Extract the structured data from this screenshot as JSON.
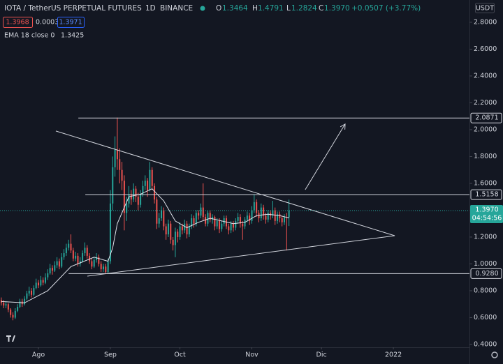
{
  "header": {
    "symbol": "IOTA / TetherUS PERPETUAL FUTURES",
    "interval": "1D",
    "exchange": "BINANCE",
    "open_label": "O",
    "open": "1.3464",
    "high_label": "H",
    "high": "1.4791",
    "low_label": "L",
    "low": "1.2824",
    "close_label": "C",
    "close": "1.3970",
    "change": "+0.0507 (+3.77%)",
    "sell": "1.3968",
    "spread": "0.0003",
    "buy": "1.3971",
    "ema_label": "EMA 18 close 0",
    "ema_value": "1.3425",
    "currency": "USDT"
  },
  "chart_data": {
    "type": "candlestick",
    "up_color": "#26a69a",
    "down_color": "#ef5350",
    "grid": false,
    "ylim": [
      0.379,
      2.966
    ],
    "xlim": [
      -0.57,
      201.8
    ],
    "yticks": [
      {
        "value": 0.4,
        "label": "0.4000"
      },
      {
        "value": 0.6,
        "label": "0.6000"
      },
      {
        "value": 0.8,
        "label": "0.8000"
      },
      {
        "value": 1.0,
        "label": "1.0000"
      },
      {
        "value": 1.2,
        "label": "1.2000"
      },
      {
        "value": 1.4,
        "label": "1.4000"
      },
      {
        "value": 1.6,
        "label": "1.6000"
      },
      {
        "value": 1.8,
        "label": "1.8000"
      },
      {
        "value": 2.0,
        "label": "2.0000"
      },
      {
        "value": 2.2,
        "label": "2.2000"
      },
      {
        "value": 2.4,
        "label": "2.4000"
      },
      {
        "value": 2.6,
        "label": "2.6000"
      },
      {
        "value": 2.8,
        "label": "2.8000"
      }
    ],
    "xticks": [
      {
        "value": 16,
        "label": "Ago"
      },
      {
        "value": 47,
        "label": "Sep"
      },
      {
        "value": 77,
        "label": "Oct"
      },
      {
        "value": 108,
        "label": "Nov"
      },
      {
        "value": 138,
        "label": "Dic"
      },
      {
        "value": 169,
        "label": "2022"
      }
    ],
    "ohlc": [
      [
        0.73,
        0.75,
        0.69,
        0.71
      ],
      [
        0.71,
        0.73,
        0.67,
        0.69
      ],
      [
        0.69,
        0.72,
        0.67,
        0.7
      ],
      [
        0.7,
        0.71,
        0.64,
        0.66
      ],
      [
        0.66,
        0.67,
        0.6,
        0.62
      ],
      [
        0.62,
        0.64,
        0.58,
        0.6
      ],
      [
        0.6,
        0.67,
        0.59,
        0.65
      ],
      [
        0.65,
        0.7,
        0.64,
        0.68
      ],
      [
        0.68,
        0.74,
        0.67,
        0.72
      ],
      [
        0.72,
        0.74,
        0.68,
        0.7
      ],
      [
        0.7,
        0.76,
        0.69,
        0.74
      ],
      [
        0.74,
        0.8,
        0.73,
        0.78
      ],
      [
        0.78,
        0.83,
        0.76,
        0.8
      ],
      [
        0.8,
        0.82,
        0.75,
        0.77
      ],
      [
        0.77,
        0.84,
        0.76,
        0.82
      ],
      [
        0.82,
        0.89,
        0.81,
        0.86
      ],
      [
        0.86,
        0.88,
        0.82,
        0.84
      ],
      [
        0.84,
        0.91,
        0.83,
        0.88
      ],
      [
        0.88,
        0.9,
        0.84,
        0.86
      ],
      [
        0.86,
        0.93,
        0.85,
        0.9
      ],
      [
        0.9,
        0.96,
        0.88,
        0.93
      ],
      [
        0.93,
        1.0,
        0.92,
        0.97
      ],
      [
        0.97,
        0.99,
        0.92,
        0.95
      ],
      [
        0.95,
        1.02,
        0.94,
        0.99
      ],
      [
        0.99,
        1.05,
        0.97,
        1.02
      ],
      [
        1.02,
        1.04,
        0.96,
        0.98
      ],
      [
        0.98,
        1.08,
        0.97,
        1.05
      ],
      [
        1.05,
        1.11,
        1.03,
        1.08
      ],
      [
        1.08,
        1.15,
        1.06,
        1.12
      ],
      [
        1.12,
        1.18,
        1.1,
        1.15
      ],
      [
        1.15,
        1.22,
        1.08,
        1.1
      ],
      [
        1.1,
        1.12,
        1.02,
        1.04
      ],
      [
        1.04,
        1.09,
        1.02,
        1.06
      ],
      [
        1.06,
        1.08,
        0.98,
        1.0
      ],
      [
        1.0,
        1.05,
        0.98,
        1.02
      ],
      [
        1.02,
        1.1,
        1.01,
        1.08
      ],
      [
        1.08,
        1.16,
        1.06,
        1.12
      ],
      [
        1.12,
        1.14,
        1.04,
        1.06
      ],
      [
        1.06,
        1.08,
        1.0,
        1.02
      ],
      [
        1.02,
        1.04,
        0.96,
        0.98
      ],
      [
        0.98,
        1.05,
        0.97,
        1.03
      ],
      [
        1.03,
        1.08,
        1.01,
        1.05
      ],
      [
        1.05,
        1.07,
        0.98,
        1.0
      ],
      [
        1.0,
        1.02,
        0.94,
        0.96
      ],
      [
        0.96,
        1.0,
        0.94,
        0.98
      ],
      [
        0.98,
        1.0,
        0.93,
        0.94
      ],
      [
        0.94,
        1.04,
        0.93,
        1.02
      ],
      [
        1.02,
        1.55,
        1.0,
        1.45
      ],
      [
        1.45,
        1.8,
        1.4,
        1.72
      ],
      [
        1.72,
        1.95,
        1.65,
        1.85
      ],
      [
        1.85,
        2.09,
        1.7,
        1.78
      ],
      [
        1.78,
        1.86,
        1.6,
        1.7
      ],
      [
        1.7,
        1.76,
        1.55,
        1.62
      ],
      [
        1.62,
        1.66,
        1.25,
        1.38
      ],
      [
        1.38,
        1.5,
        1.32,
        1.45
      ],
      [
        1.45,
        1.58,
        1.42,
        1.52
      ],
      [
        1.52,
        1.55,
        1.44,
        1.48
      ],
      [
        1.48,
        1.6,
        1.46,
        1.56
      ],
      [
        1.56,
        1.58,
        1.46,
        1.5
      ],
      [
        1.5,
        1.53,
        1.4,
        1.44
      ],
      [
        1.44,
        1.55,
        1.42,
        1.52
      ],
      [
        1.52,
        1.62,
        1.5,
        1.58
      ],
      [
        1.58,
        1.66,
        1.55,
        1.62
      ],
      [
        1.62,
        1.64,
        1.5,
        1.55
      ],
      [
        1.55,
        1.76,
        1.54,
        1.7
      ],
      [
        1.7,
        1.72,
        1.55,
        1.58
      ],
      [
        1.58,
        1.6,
        1.45,
        1.48
      ],
      [
        1.48,
        1.5,
        1.26,
        1.3
      ],
      [
        1.3,
        1.38,
        1.27,
        1.34
      ],
      [
        1.34,
        1.43,
        1.32,
        1.4
      ],
      [
        1.4,
        1.42,
        1.25,
        1.28
      ],
      [
        1.28,
        1.3,
        1.18,
        1.22
      ],
      [
        1.22,
        1.33,
        1.2,
        1.3
      ],
      [
        1.3,
        1.32,
        1.15,
        1.18
      ],
      [
        1.18,
        1.2,
        1.1,
        1.14
      ],
      [
        1.14,
        1.27,
        1.05,
        1.24
      ],
      [
        1.24,
        1.26,
        1.16,
        1.2
      ],
      [
        1.2,
        1.31,
        1.18,
        1.28
      ],
      [
        1.28,
        1.3,
        1.22,
        1.25
      ],
      [
        1.25,
        1.33,
        1.23,
        1.3
      ],
      [
        1.3,
        1.32,
        1.19,
        1.22
      ],
      [
        1.22,
        1.3,
        1.2,
        1.28
      ],
      [
        1.28,
        1.37,
        1.26,
        1.34
      ],
      [
        1.34,
        1.36,
        1.27,
        1.3
      ],
      [
        1.3,
        1.4,
        1.28,
        1.38
      ],
      [
        1.38,
        1.4,
        1.33,
        1.36
      ],
      [
        1.36,
        1.45,
        1.34,
        1.42
      ],
      [
        1.42,
        1.6,
        1.32,
        1.35
      ],
      [
        1.35,
        1.37,
        1.28,
        1.3
      ],
      [
        1.3,
        1.4,
        1.28,
        1.38
      ],
      [
        1.38,
        1.4,
        1.31,
        1.33
      ],
      [
        1.33,
        1.37,
        1.3,
        1.35
      ],
      [
        1.35,
        1.36,
        1.25,
        1.28
      ],
      [
        1.28,
        1.34,
        1.26,
        1.32
      ],
      [
        1.32,
        1.34,
        1.23,
        1.26
      ],
      [
        1.26,
        1.32,
        1.24,
        1.3
      ],
      [
        1.3,
        1.36,
        1.28,
        1.34
      ],
      [
        1.34,
        1.36,
        1.26,
        1.28
      ],
      [
        1.28,
        1.3,
        1.22,
        1.25
      ],
      [
        1.25,
        1.32,
        1.23,
        1.3
      ],
      [
        1.3,
        1.32,
        1.24,
        1.27
      ],
      [
        1.27,
        1.34,
        1.25,
        1.32
      ],
      [
        1.32,
        1.38,
        1.3,
        1.35
      ],
      [
        1.35,
        1.37,
        1.27,
        1.3
      ],
      [
        1.3,
        1.32,
        1.18,
        1.28
      ],
      [
        1.28,
        1.35,
        1.26,
        1.33
      ],
      [
        1.33,
        1.39,
        1.31,
        1.36
      ],
      [
        1.36,
        1.38,
        1.29,
        1.32
      ],
      [
        1.32,
        1.43,
        1.3,
        1.4
      ],
      [
        1.4,
        1.52,
        1.38,
        1.46
      ],
      [
        1.46,
        1.48,
        1.35,
        1.38
      ],
      [
        1.38,
        1.4,
        1.31,
        1.34
      ],
      [
        1.34,
        1.45,
        1.32,
        1.42
      ],
      [
        1.42,
        1.44,
        1.33,
        1.36
      ],
      [
        1.36,
        1.38,
        1.3,
        1.33
      ],
      [
        1.33,
        1.4,
        1.31,
        1.38
      ],
      [
        1.38,
        1.4,
        1.33,
        1.36
      ],
      [
        1.36,
        1.47,
        1.34,
        1.4
      ],
      [
        1.4,
        1.42,
        1.29,
        1.32
      ],
      [
        1.32,
        1.39,
        1.3,
        1.37
      ],
      [
        1.37,
        1.39,
        1.31,
        1.34
      ],
      [
        1.34,
        1.36,
        1.28,
        1.31
      ],
      [
        1.31,
        1.37,
        1.29,
        1.35
      ],
      [
        1.35,
        1.38,
        1.1,
        1.3464
      ],
      [
        1.3464,
        1.4791,
        1.2824,
        1.397
      ]
    ],
    "ema": {
      "color": "#e0e3eb",
      "x": [
        0,
        10,
        20,
        30,
        40,
        46,
        48,
        50,
        55,
        60,
        65,
        70,
        75,
        80,
        85,
        90,
        95,
        100,
        105,
        110,
        115,
        120,
        124
      ],
      "values": [
        0.72,
        0.71,
        0.8,
        0.98,
        1.05,
        1.02,
        1.12,
        1.3,
        1.5,
        1.52,
        1.56,
        1.47,
        1.32,
        1.27,
        1.31,
        1.34,
        1.32,
        1.3,
        1.31,
        1.36,
        1.37,
        1.36,
        1.3425
      ]
    },
    "levels": [
      {
        "value": 2.0871,
        "x_start": 33.2
      },
      {
        "value": 1.5158,
        "x_start": 36.2
      },
      {
        "value": {
          "value": 0.928,
          "label": "0.9280"
        },
        "x_start": 29
      }
    ],
    "trendlines": [
      {
        "x": [
          23.5,
          169.6
        ],
        "y": [
          1.99,
          1.21
        ]
      },
      {
        "x": [
          37.1,
          169.6
        ],
        "y": [
          0.909,
          1.21
        ]
      }
    ],
    "arrow": {
      "x": [
        131,
        148.2
      ],
      "y": [
        1.553,
        2.042
      ]
    },
    "last_price": {
      "value": 1.397,
      "label": "1.3970",
      "countdown": "04:54:56"
    }
  }
}
